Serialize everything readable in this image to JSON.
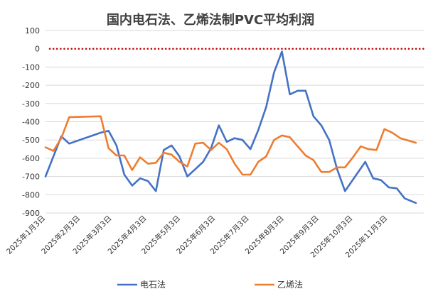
{
  "chart_data": {
    "type": "line",
    "title": "国内电石法、乙烯法制PVC平均利润",
    "xlabel": "",
    "ylabel": "",
    "ylim": [
      -900,
      100
    ],
    "yticks": [
      100,
      0,
      -100,
      -200,
      -300,
      -400,
      -500,
      -600,
      -700,
      -800,
      -900
    ],
    "xticks": [
      "2025年1月3日",
      "2025年2月3日",
      "2025年3月3日",
      "2025年4月3日",
      "2025年5月3日",
      "2025年6月3日",
      "2025年7月3日",
      "2025年8月3日",
      "2025年9月3日",
      "2025年10月3日",
      "2025年11月3日"
    ],
    "xdomain": [
      "2025-01-03",
      "2025-12-05"
    ],
    "grid": true,
    "legend": "bottom",
    "reference_line": {
      "y": 0,
      "color": "#c00000",
      "style": "dotted"
    },
    "series": [
      {
        "name": "电石法",
        "color": "#4472c4",
        "points": [
          [
            "2025-01-03",
            -700
          ],
          [
            "2025-01-17",
            -480
          ],
          [
            "2025-01-24",
            -520
          ],
          [
            "2025-02-21",
            -460
          ],
          [
            "2025-02-28",
            -450
          ],
          [
            "2025-03-07",
            -530
          ],
          [
            "2025-03-14",
            -690
          ],
          [
            "2025-03-21",
            -750
          ],
          [
            "2025-03-28",
            -710
          ],
          [
            "2025-04-04",
            -725
          ],
          [
            "2025-04-11",
            -780
          ],
          [
            "2025-04-18",
            -555
          ],
          [
            "2025-04-25",
            -530
          ],
          [
            "2025-05-02",
            -590
          ],
          [
            "2025-05-09",
            -700
          ],
          [
            "2025-05-16",
            -660
          ],
          [
            "2025-05-23",
            -620
          ],
          [
            "2025-05-30",
            -545
          ],
          [
            "2025-06-06",
            -420
          ],
          [
            "2025-06-13",
            -510
          ],
          [
            "2025-06-20",
            -490
          ],
          [
            "2025-06-27",
            -500
          ],
          [
            "2025-07-04",
            -550
          ],
          [
            "2025-07-11",
            -445
          ],
          [
            "2025-07-18",
            -320
          ],
          [
            "2025-07-25",
            -130
          ],
          [
            "2025-08-01",
            -15
          ],
          [
            "2025-08-08",
            -250
          ],
          [
            "2025-08-15",
            -230
          ],
          [
            "2025-08-22",
            -230
          ],
          [
            "2025-08-29",
            -370
          ],
          [
            "2025-09-05",
            -420
          ],
          [
            "2025-09-12",
            -500
          ],
          [
            "2025-09-19",
            -660
          ],
          [
            "2025-09-26",
            -780
          ],
          [
            "2025-10-14",
            -620
          ],
          [
            "2025-10-21",
            -710
          ],
          [
            "2025-10-28",
            -720
          ],
          [
            "2025-11-04",
            -760
          ],
          [
            "2025-11-11",
            -765
          ],
          [
            "2025-11-18",
            -820
          ],
          [
            "2025-11-28",
            -845
          ]
        ]
      },
      {
        "name": "乙烯法",
        "color": "#ed7d31",
        "points": [
          [
            "2025-01-03",
            -540
          ],
          [
            "2025-01-10",
            -560
          ],
          [
            "2025-01-17",
            -490
          ],
          [
            "2025-01-24",
            -375
          ],
          [
            "2025-02-21",
            -370
          ],
          [
            "2025-02-28",
            -545
          ],
          [
            "2025-03-07",
            -585
          ],
          [
            "2025-03-14",
            -585
          ],
          [
            "2025-03-21",
            -665
          ],
          [
            "2025-03-28",
            -595
          ],
          [
            "2025-04-04",
            -630
          ],
          [
            "2025-04-11",
            -625
          ],
          [
            "2025-04-18",
            -570
          ],
          [
            "2025-04-25",
            -580
          ],
          [
            "2025-05-02",
            -620
          ],
          [
            "2025-05-09",
            -645
          ],
          [
            "2025-05-16",
            -520
          ],
          [
            "2025-05-23",
            -515
          ],
          [
            "2025-05-30",
            -555
          ],
          [
            "2025-06-06",
            -515
          ],
          [
            "2025-06-13",
            -550
          ],
          [
            "2025-06-20",
            -630
          ],
          [
            "2025-06-27",
            -690
          ],
          [
            "2025-07-04",
            -690
          ],
          [
            "2025-07-11",
            -620
          ],
          [
            "2025-07-18",
            -590
          ],
          [
            "2025-07-25",
            -500
          ],
          [
            "2025-08-01",
            -475
          ],
          [
            "2025-08-08",
            -485
          ],
          [
            "2025-08-15",
            -535
          ],
          [
            "2025-08-22",
            -585
          ],
          [
            "2025-08-29",
            -610
          ],
          [
            "2025-09-05",
            -675
          ],
          [
            "2025-09-12",
            -675
          ],
          [
            "2025-09-19",
            -650
          ],
          [
            "2025-09-26",
            -650
          ],
          [
            "2025-10-03",
            -595
          ],
          [
            "2025-10-10",
            -535
          ],
          [
            "2025-10-17",
            -550
          ],
          [
            "2025-10-24",
            -555
          ],
          [
            "2025-10-31",
            -440
          ],
          [
            "2025-11-07",
            -460
          ],
          [
            "2025-11-14",
            -490
          ],
          [
            "2025-11-28",
            -515
          ]
        ]
      }
    ]
  }
}
